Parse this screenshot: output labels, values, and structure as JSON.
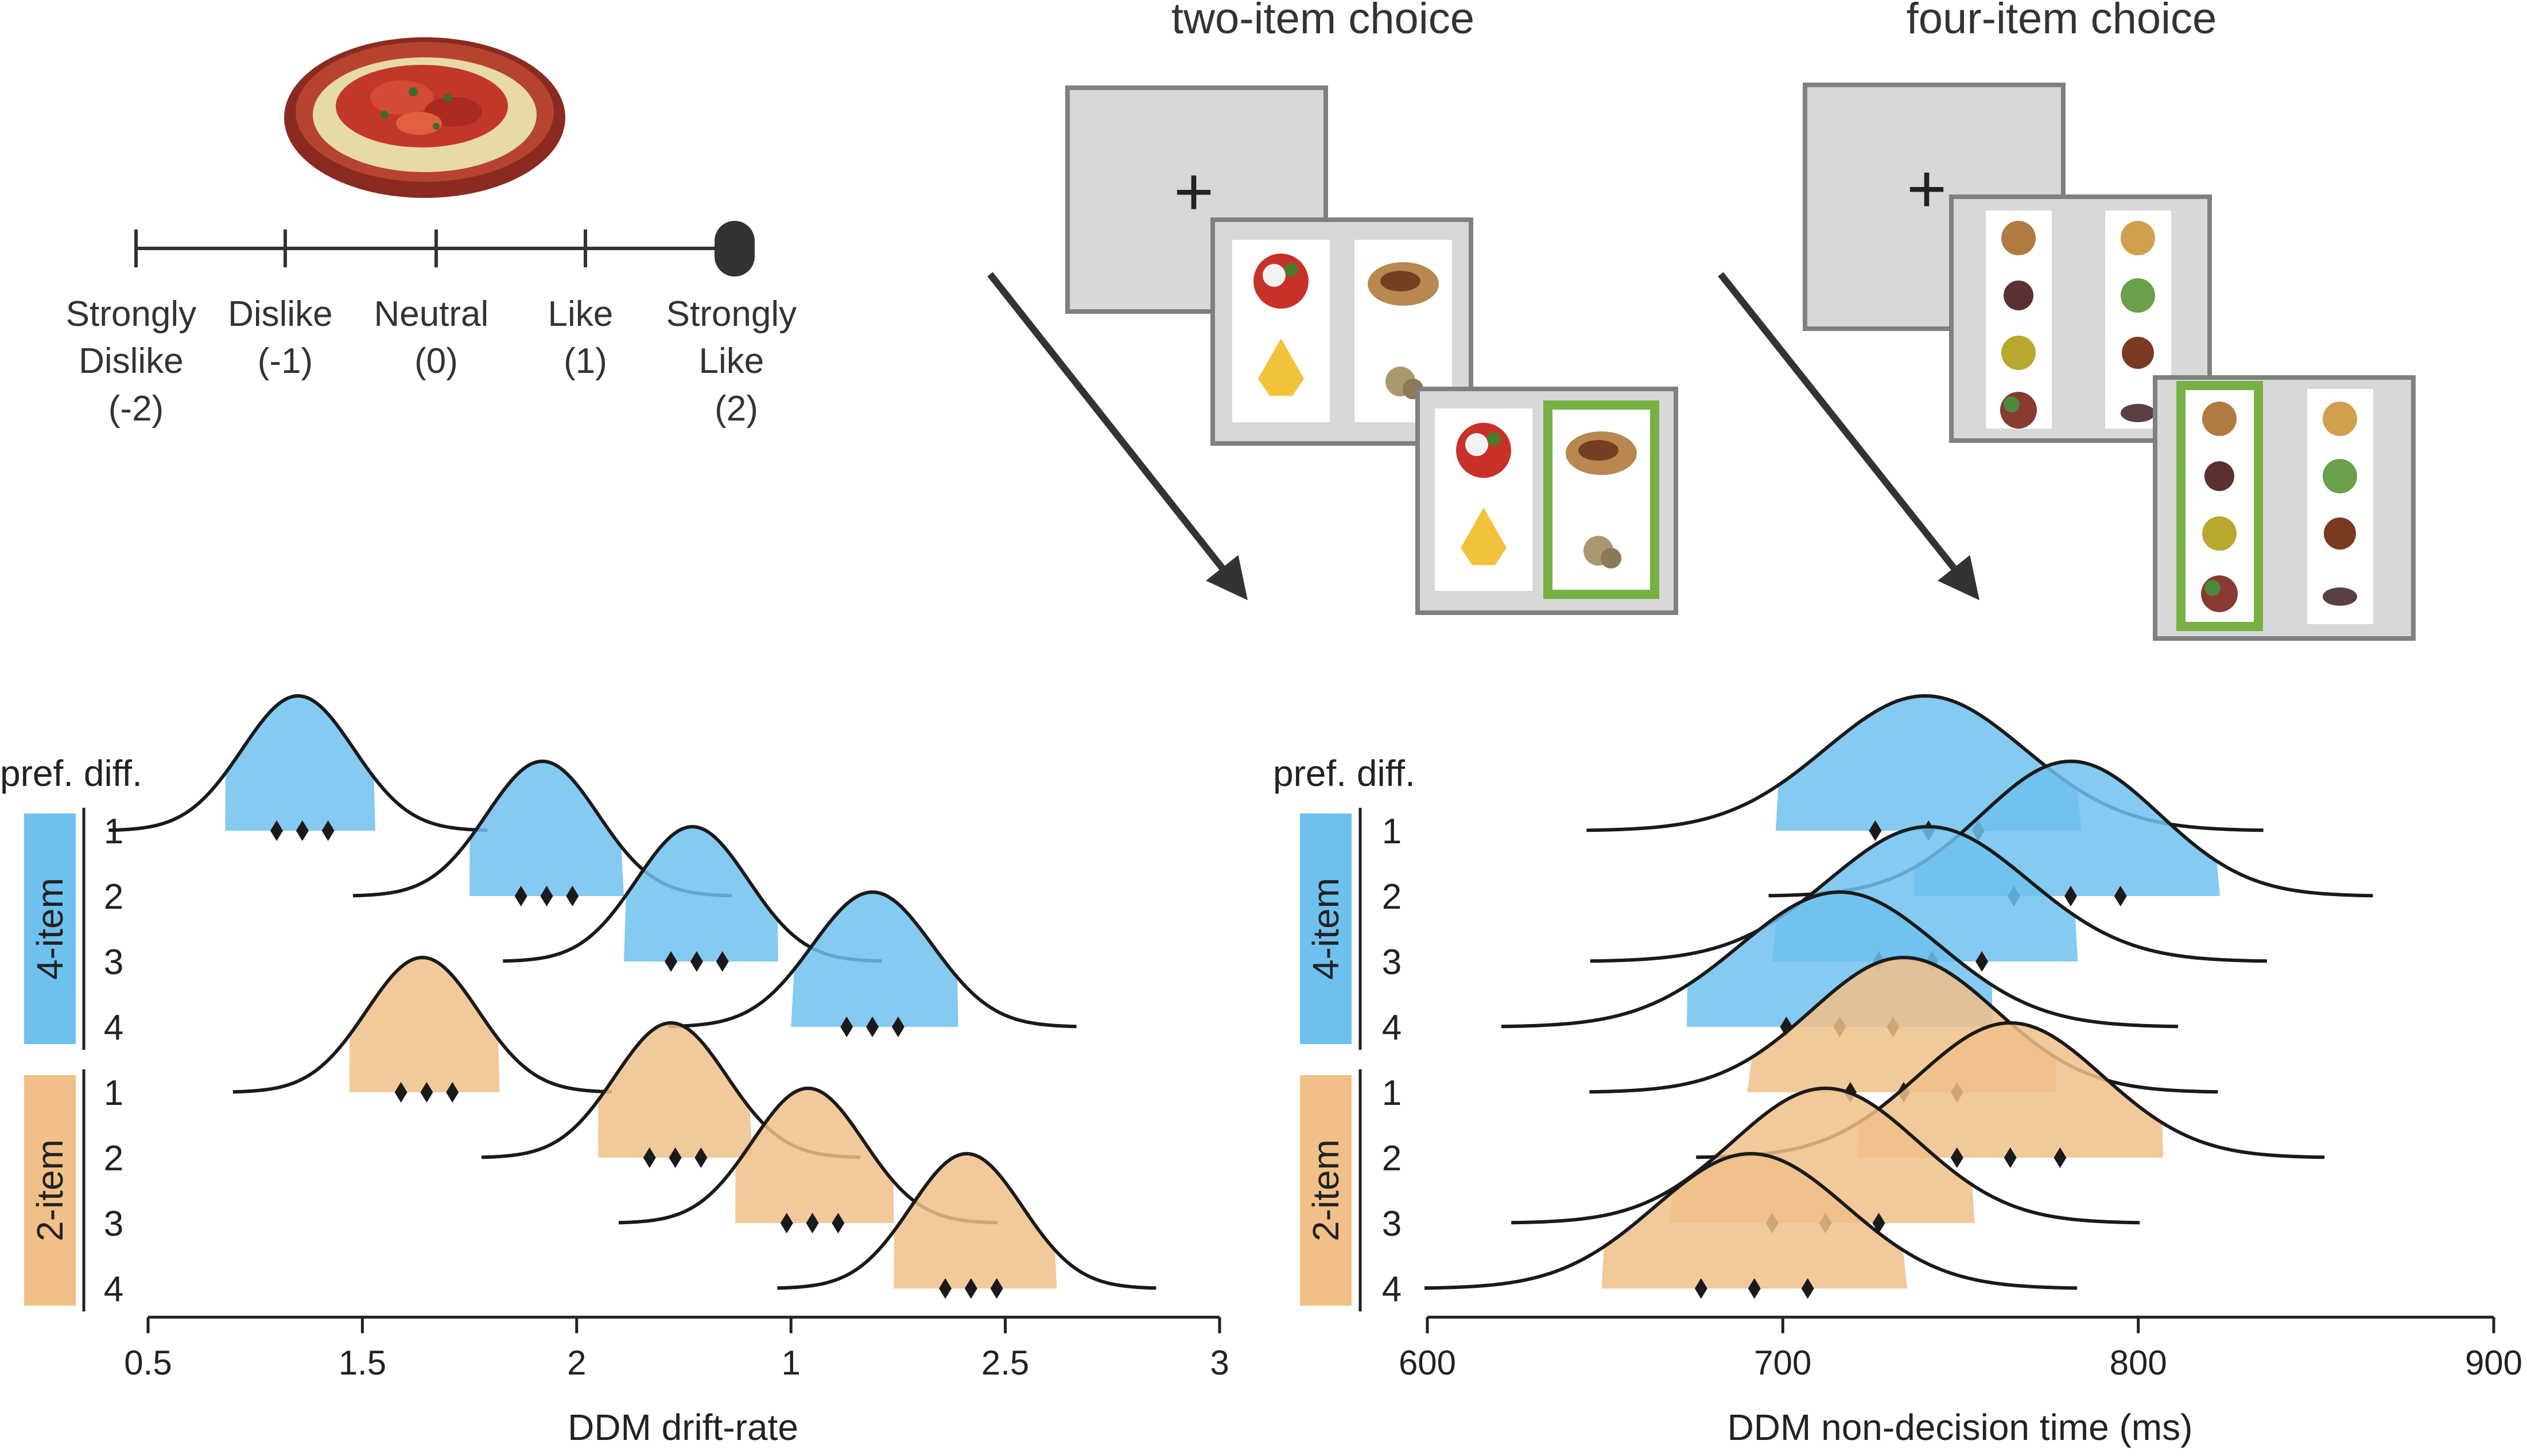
{
  "rating_scale": {
    "labels": [
      {
        "lines": [
          "Strongly",
          "Dislike",
          "(-2)"
        ]
      },
      {
        "lines": [
          "Dislike",
          "(-1)"
        ]
      },
      {
        "lines": [
          "Neutral",
          "(0)"
        ]
      },
      {
        "lines": [
          "Like",
          "(1)"
        ]
      },
      {
        "lines": [
          "Strongly",
          "Like",
          "(2)"
        ]
      }
    ],
    "selected_index": 4
  },
  "task_panels": {
    "two_item_title": "two-item choice",
    "four_item_title": "four-item choice",
    "fixation_symbol": "+"
  },
  "colors": {
    "four_item": "#6EC1EE",
    "two_item": "#F0C088",
    "curve": "#1a1a1a",
    "selection_frame": "#77B044",
    "screen_fill": "#D8D8D8",
    "screen_border": "#808080"
  },
  "chart_data": [
    {
      "type": "ridgeline",
      "xlabel": "DDM drift-rate",
      "row_axis_label": "pref. diff.",
      "xticks": [
        "0.5",
        "1.5",
        "2",
        "1",
        "2.5",
        "3"
      ],
      "xlim": [
        0.5,
        3
      ],
      "group_labels": [
        "4-item",
        "2-item"
      ],
      "rows": [
        {
          "group": "4-item",
          "label": "1",
          "mean": 0.85,
          "sd": 0.13,
          "interval": [
            0.68,
            1.03
          ],
          "markers": [
            0.8,
            0.86,
            0.92
          ]
        },
        {
          "group": "4-item",
          "label": "2",
          "mean": 1.42,
          "sd": 0.13,
          "interval": [
            1.25,
            1.61
          ],
          "markers": [
            1.37,
            1.43,
            1.49
          ]
        },
        {
          "group": "4-item",
          "label": "3",
          "mean": 1.77,
          "sd": 0.13,
          "interval": [
            1.61,
            1.97
          ],
          "markers": [
            1.72,
            1.78,
            1.84
          ]
        },
        {
          "group": "4-item",
          "label": "4",
          "mean": 2.19,
          "sd": 0.14,
          "interval": [
            2.0,
            2.39
          ],
          "markers": [
            2.13,
            2.19,
            2.25
          ]
        },
        {
          "group": "2-item",
          "label": "1",
          "mean": 1.14,
          "sd": 0.13,
          "interval": [
            0.97,
            1.32
          ],
          "markers": [
            1.09,
            1.15,
            1.21
          ]
        },
        {
          "group": "2-item",
          "label": "2",
          "mean": 1.72,
          "sd": 0.13,
          "interval": [
            1.55,
            1.91
          ],
          "markers": [
            1.67,
            1.73,
            1.79
          ]
        },
        {
          "group": "2-item",
          "label": "3",
          "mean": 2.04,
          "sd": 0.13,
          "interval": [
            1.87,
            2.24
          ],
          "markers": [
            1.99,
            2.05,
            2.11
          ]
        },
        {
          "group": "2-item",
          "label": "4",
          "mean": 2.41,
          "sd": 0.13,
          "interval": [
            2.24,
            2.62
          ],
          "markers": [
            2.36,
            2.42,
            2.48
          ]
        }
      ]
    },
    {
      "type": "ridgeline",
      "xlabel": "DDM non-decision time (ms)",
      "row_axis_label": "pref. diff.",
      "xticks": [
        "600",
        "700",
        "800",
        "900"
      ],
      "xlim": [
        600,
        900
      ],
      "group_labels": [
        "4-item",
        "2-item"
      ],
      "rows": [
        {
          "group": "4-item",
          "label": "1",
          "mean": 740,
          "sd": 28,
          "interval": [
            698,
            784
          ],
          "markers": [
            726,
            741,
            755
          ]
        },
        {
          "group": "4-item",
          "label": "2",
          "mean": 781,
          "sd": 25,
          "interval": [
            737,
            823
          ],
          "markers": [
            765,
            781,
            795
          ]
        },
        {
          "group": "4-item",
          "label": "3",
          "mean": 741,
          "sd": 28,
          "interval": [
            697,
            783
          ],
          "markers": [
            727,
            742,
            756
          ]
        },
        {
          "group": "4-item",
          "label": "4",
          "mean": 716,
          "sd": 28,
          "interval": [
            673,
            759
          ],
          "markers": [
            701,
            716,
            731
          ]
        },
        {
          "group": "2-item",
          "label": "1",
          "mean": 734,
          "sd": 26,
          "interval": [
            690,
            777
          ],
          "markers": [
            719,
            734,
            749
          ]
        },
        {
          "group": "2-item",
          "label": "2",
          "mean": 764,
          "sd": 26,
          "interval": [
            721,
            807
          ],
          "markers": [
            749,
            764,
            778
          ]
        },
        {
          "group": "2-item",
          "label": "3",
          "mean": 712,
          "sd": 26,
          "interval": [
            668,
            754
          ],
          "markers": [
            697,
            712,
            727
          ]
        },
        {
          "group": "2-item",
          "label": "4",
          "mean": 691,
          "sd": 27,
          "interval": [
            649,
            735
          ],
          "markers": [
            677,
            692,
            707
          ]
        }
      ]
    }
  ]
}
